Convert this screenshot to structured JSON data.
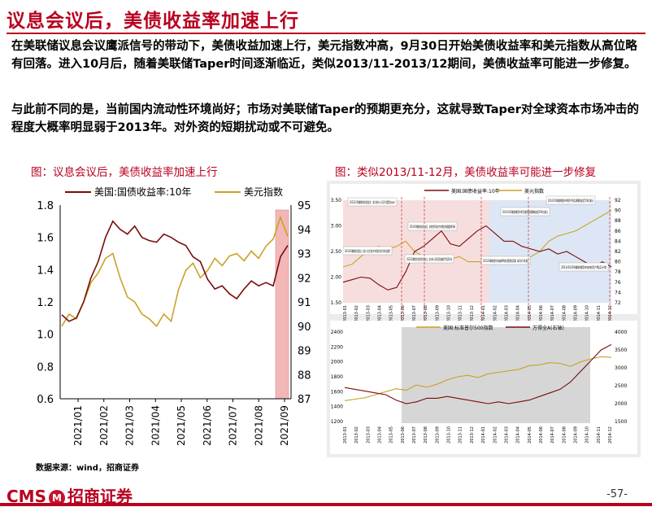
{
  "page": {
    "title": "议息会议后，美债收益率加速上行",
    "paragraph1": "在美联储议息会议鹰派信号的带动下，美债收益加速上行，美元指数冲高，9月30日开始美债收益率和美元指数从高位略有回落。进入10月后，随着美联储Taper时间逐渐临近，类似2013/11-2013/12期间，美债收益率可能进一步修复。",
    "paragraph2": "与此前不同的是，当前国内流动性环境尚好；市场对美联储Taper的预期更充分，这就导致Taper对全球资本市场冲击的程度大概率明显弱于2013年。对外资的短期扰动或不可避免。",
    "source": "数据来源：wind，招商证券",
    "logo": "CMS",
    "logo_badge": "M",
    "logo_cn": "招商证券",
    "page_number": "-57-"
  },
  "colors": {
    "accent": "#b8001f",
    "series_yield": "#7a0c0c",
    "series_usd": "#c9a227",
    "highlight": "#f2b8b8"
  },
  "figure1": {
    "title": "图：议息会议后，美债收益率加速上行",
    "chart_data": {
      "type": "line",
      "title": "",
      "series": [
        {
          "name": "美国:国债收益率:10年",
          "axis": "left",
          "values": [
            1.12,
            1.08,
            1.1,
            1.2,
            1.35,
            1.45,
            1.6,
            1.7,
            1.65,
            1.62,
            1.67,
            1.6,
            1.58,
            1.57,
            1.62,
            1.6,
            1.57,
            1.55,
            1.48,
            1.45,
            1.34,
            1.28,
            1.3,
            1.25,
            1.22,
            1.28,
            1.33,
            1.3,
            1.32,
            1.3,
            1.48,
            1.55
          ]
        },
        {
          "name": "美元指数",
          "axis": "right",
          "values": [
            90.0,
            90.5,
            90.3,
            91.0,
            91.8,
            92.2,
            92.8,
            93.0,
            92.0,
            91.2,
            91.0,
            90.5,
            90.3,
            90.0,
            90.5,
            90.2,
            91.5,
            92.3,
            92.6,
            92.0,
            92.3,
            92.8,
            92.5,
            92.9,
            93.0,
            92.7,
            93.1,
            92.8,
            93.3,
            93.6,
            94.5,
            93.7
          ]
        }
      ],
      "x_ticks": [
        "2021/01",
        "2021/02",
        "2021/03",
        "2021/04",
        "2021/05",
        "2021/06",
        "2021/07",
        "2021/08",
        "2021/09"
      ],
      "yleft_ticks": [
        "0.6",
        "0.8",
        "1.0",
        "1.2",
        "1.4",
        "1.6",
        "1.8"
      ],
      "yright_ticks": [
        "87",
        "88",
        "89",
        "90",
        "91",
        "92",
        "93",
        "94",
        "95"
      ],
      "ylim_left": [
        0.6,
        1.8
      ],
      "ylim_right": [
        87,
        95
      ],
      "legend": "top",
      "grid": false
    }
  },
  "figure2": {
    "title": "图：类似2013/11-12月，美债收益率可能进一步修复",
    "top_chart_data": {
      "type": "line",
      "series": [
        {
          "name": "美国:国债收益率:10年",
          "axis": "left",
          "values": [
            1.9,
            1.95,
            2.0,
            1.98,
            1.85,
            1.75,
            1.8,
            2.1,
            2.5,
            2.6,
            2.75,
            2.9,
            2.65,
            2.6,
            2.75,
            2.9,
            3.0,
            2.85,
            2.7,
            2.7,
            2.6,
            2.55,
            2.5,
            2.55,
            2.45,
            2.5,
            2.4,
            2.3,
            2.2,
            2.3,
            2.2
          ]
        },
        {
          "name": "美元指数",
          "axis": "right",
          "values": [
            79,
            79.5,
            81,
            82.5,
            83,
            82.5,
            83,
            84,
            82,
            81,
            80,
            80.5,
            80.5,
            81,
            80,
            80,
            80,
            79.5,
            80,
            80,
            80,
            81,
            82,
            84,
            85,
            85.5,
            86,
            87,
            88,
            89,
            90
          ]
        }
      ],
      "x_ticks": [
        "2013-01",
        "2013-02",
        "2013-03",
        "2013-04",
        "2013-05",
        "2013-06",
        "2013-07",
        "2013-08",
        "2013-09",
        "2013-10",
        "2013-11",
        "2013-12",
        "2014-01",
        "2014-02",
        "2014-03",
        "2014-04",
        "2014-05",
        "2014-06",
        "2014-07",
        "2014-08",
        "2014-09",
        "2014-10",
        "2014-11",
        "2014-12"
      ],
      "yleft_ticks": [
        "1.50",
        "2.00",
        "2.50",
        "3.00",
        "3.50"
      ],
      "yright_ticks": [
        "72",
        "74",
        "76",
        "78",
        "80",
        "82",
        "84",
        "86",
        "88",
        "90",
        "92"
      ],
      "annotations": [
        "2013/1/30美联储议息会议：部分参与人员开式提及taper",
        "2013/5/22美联储主席在国会作证会议上，部分参与人员表示提出缩减资产购买QE计划",
        "2013/4/10美联储议息会议：部分人员主张在年中前逐步减少QE的必要性",
        "2013/6/19美联储议息会议后，伯南克称可能在今年晚些时候放缓购债节奏",
        "2013/12/18美联储宣布开始缩减MBS和长期国债购买规模，每月减少100亿美元",
        "2014/3/19美联储宣布将资产购买规模削减至550亿美元",
        "2014/1/29美联储宣布将月度购债规模缩减至650亿美元",
        "2014/10/29美联储宣布结束资产购买计划"
      ]
    },
    "bottom_chart_data": {
      "type": "line",
      "series": [
        {
          "name": "美国:标准普尔500指数",
          "axis": "left",
          "values": [
            1480,
            1500,
            1520,
            1560,
            1600,
            1640,
            1620,
            1690,
            1660,
            1700,
            1760,
            1800,
            1820,
            1790,
            1840,
            1860,
            1880,
            1900,
            1950,
            1960,
            1990,
            1980,
            1940,
            2000,
            2040,
            2070,
            2060
          ]
        },
        {
          "name": "万得全A(右轴)",
          "axis": "right",
          "values": [
            2450,
            2400,
            2350,
            2300,
            2250,
            2100,
            2000,
            2050,
            2150,
            2150,
            2200,
            2150,
            2100,
            2050,
            2000,
            2050,
            2000,
            2050,
            2100,
            2200,
            2300,
            2400,
            2600,
            2900,
            3200,
            3500,
            3650
          ]
        }
      ],
      "x_ticks": [
        "2013-01",
        "2013-02",
        "2013-03",
        "2013-04",
        "2013-05",
        "2013-06",
        "2013-07",
        "2013-08",
        "2013-09",
        "2013-10",
        "2013-11",
        "2013-12",
        "2014-01",
        "2014-02",
        "2014-03",
        "2014-04",
        "2014-05",
        "2014-06",
        "2014-07",
        "2014-08",
        "2014-09",
        "2014-10",
        "2014-11",
        "2014-12"
      ],
      "yleft_ticks": [
        "1200",
        "1400",
        "1600",
        "1800",
        "2000",
        "2200",
        "2400"
      ],
      "yright_ticks": [
        "1500",
        "2000",
        "2500",
        "3000",
        "3500",
        "4000"
      ]
    }
  }
}
